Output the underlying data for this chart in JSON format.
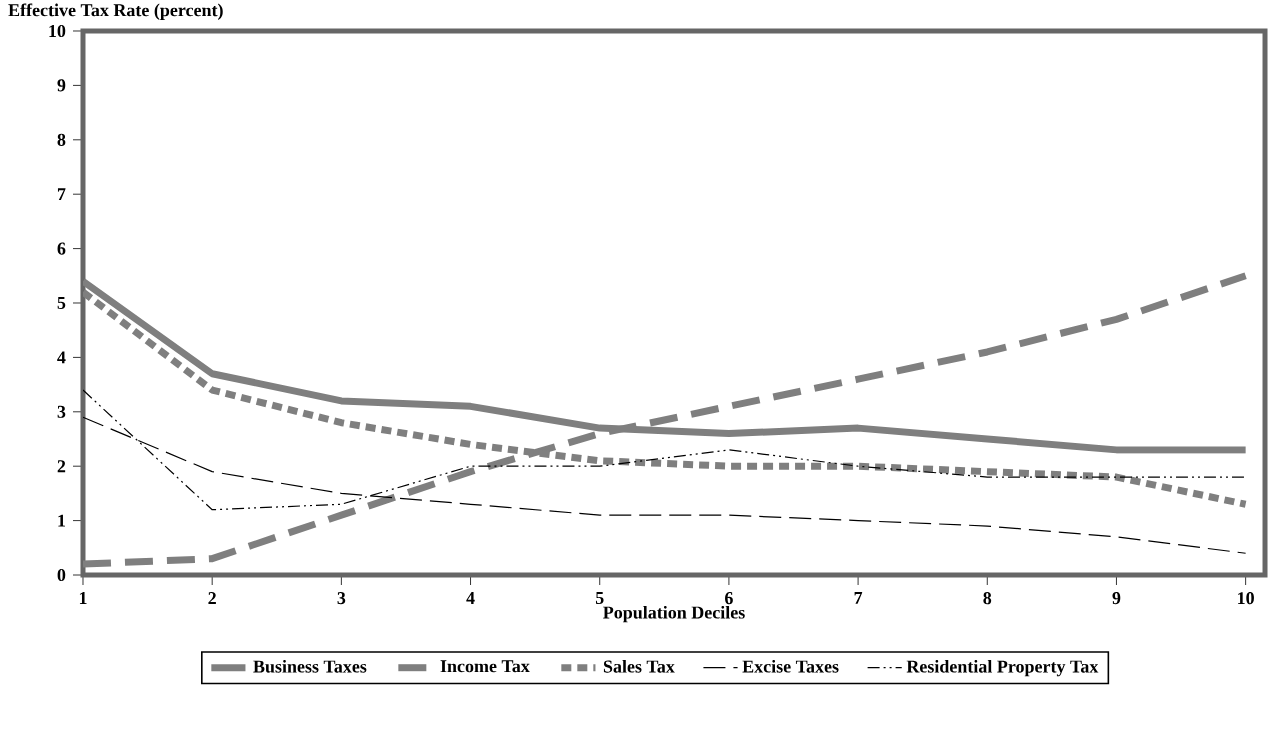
{
  "chart_data": {
    "type": "line",
    "xlabel": "Population Deciles",
    "ylabel": "Effective Tax Rate (percent)",
    "x": [
      1,
      2,
      3,
      4,
      5,
      6,
      7,
      8,
      9,
      10
    ],
    "series": [
      {
        "name": "Business Taxes",
        "color": "#7f7f7f",
        "line_style": "solid",
        "values": [
          5.4,
          3.7,
          3.2,
          3.1,
          2.7,
          2.6,
          2.7,
          2.5,
          2.3,
          2.3
        ]
      },
      {
        "name": "Income Tax",
        "color": "#7f7f7f",
        "line_style": "dashed",
        "values": [
          0.2,
          0.3,
          1.1,
          1.9,
          2.6,
          3.1,
          3.6,
          4.1,
          4.7,
          5.5
        ]
      },
      {
        "name": "Sales Tax",
        "color": "#7f7f7f",
        "line_style": "dotted",
        "values": [
          5.2,
          3.4,
          2.8,
          2.4,
          2.1,
          2.0,
          2.0,
          1.9,
          1.8,
          1.3
        ]
      },
      {
        "name": "Excise Taxes",
        "color": "#000000",
        "line_style": "dashed",
        "values": [
          2.9,
          1.9,
          1.5,
          1.3,
          1.1,
          1.1,
          1.0,
          0.9,
          0.7,
          0.4
        ]
      },
      {
        "name": "Residential Property Tax",
        "color": "#000000",
        "line_style": "dotted",
        "values": [
          3.4,
          1.2,
          1.3,
          2.0,
          2.0,
          2.3,
          2.0,
          1.8,
          1.8,
          1.8
        ]
      }
    ],
    "xlim": [
      1,
      10.15
    ],
    "ylim": [
      0,
      10
    ],
    "xticks": [
      1,
      2,
      3,
      4,
      5,
      6,
      7,
      8,
      9,
      10
    ],
    "yticks": [
      0,
      1,
      2,
      3,
      4,
      5,
      6,
      7,
      8,
      9,
      10
    ],
    "grid": false,
    "legend": "bottom",
    "marker": "none"
  }
}
